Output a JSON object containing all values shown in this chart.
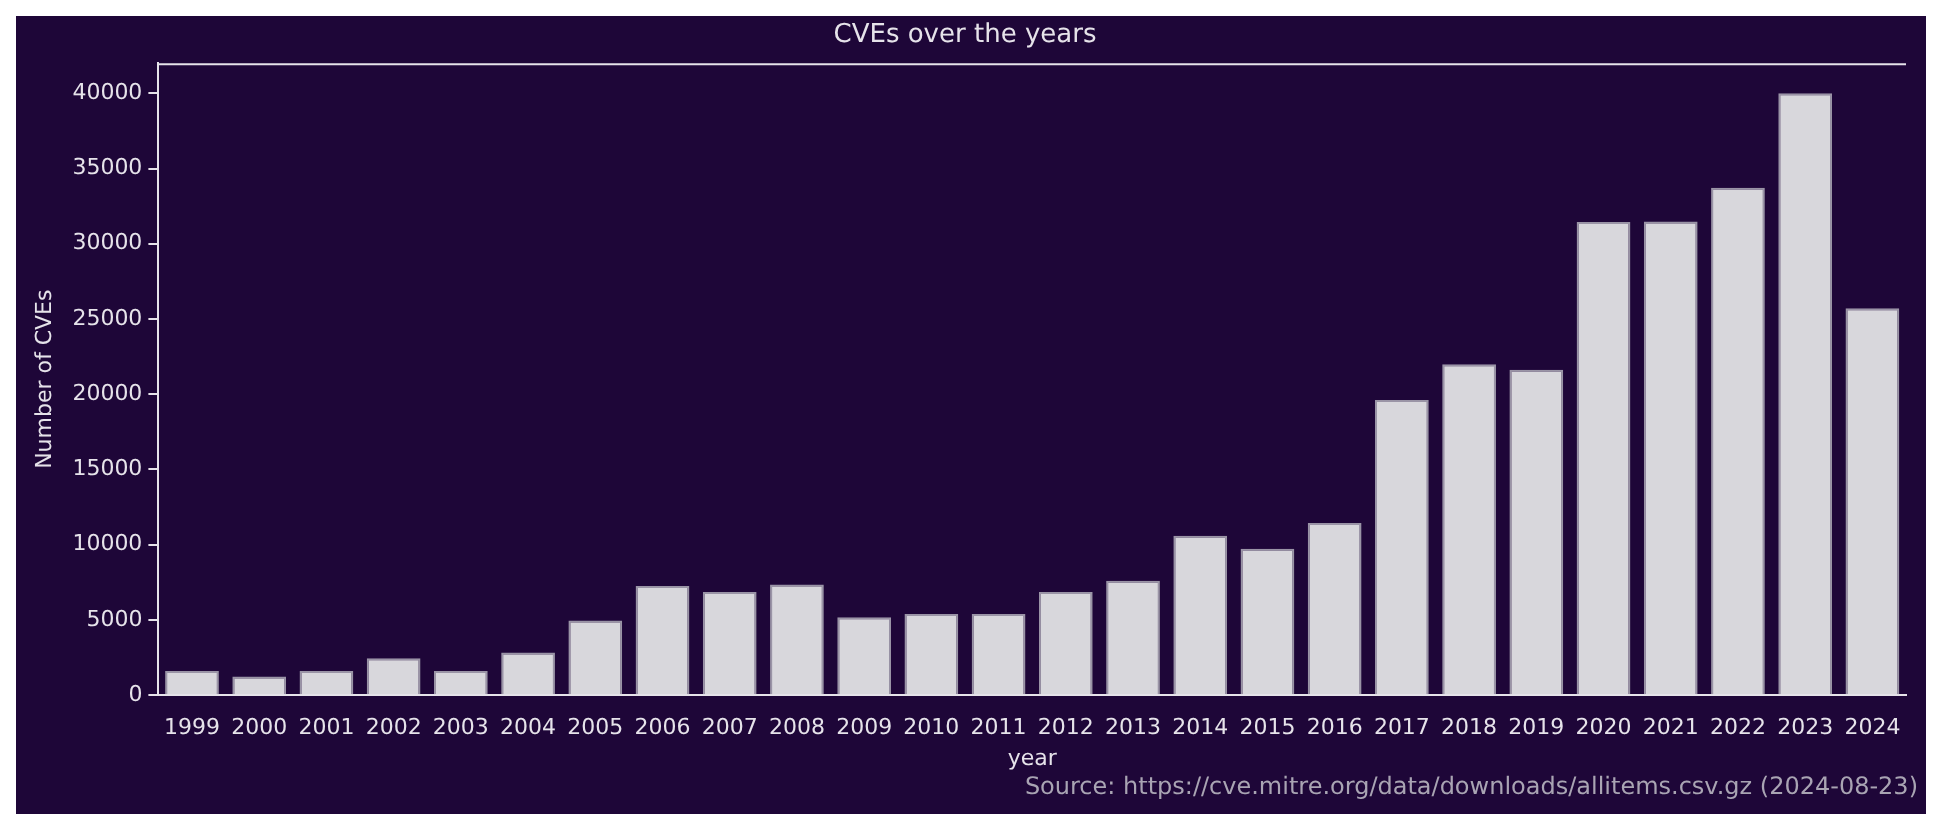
{
  "chart_data": {
    "type": "bar",
    "title": "CVEs over the years",
    "xlabel": "year",
    "ylabel": "Number of CVEs",
    "categories": [
      "1999",
      "2000",
      "2001",
      "2002",
      "2003",
      "2004",
      "2005",
      "2006",
      "2007",
      "2008",
      "2009",
      "2010",
      "2011",
      "2012",
      "2013",
      "2014",
      "2015",
      "2016",
      "2017",
      "2018",
      "2019",
      "2020",
      "2021",
      "2022",
      "2023",
      "2024"
    ],
    "values": [
      1600,
      1250,
      1600,
      2460,
      1600,
      2840,
      4970,
      7260,
      6850,
      7350,
      5180,
      5390,
      5390,
      6850,
      7600,
      10600,
      9730,
      11440,
      19620,
      22000,
      21630,
      31440,
      31480,
      33730,
      40000,
      25720
    ],
    "color": "#d8d7dc",
    "ylim": [
      0,
      42000
    ],
    "yticks": [
      0,
      5000,
      10000,
      15000,
      20000,
      25000,
      30000,
      35000,
      40000
    ],
    "grid": false,
    "legend": false,
    "annotations": [
      "Source: https://cve.mitre.org/data/downloads/allitems.csv.gz (2024-08-23)"
    ]
  }
}
